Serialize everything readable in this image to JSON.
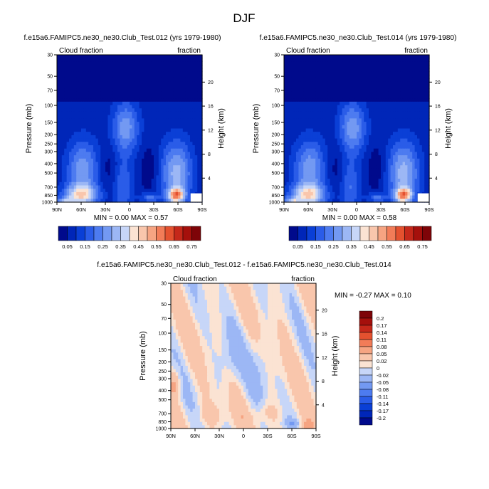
{
  "figure_title": "DJF",
  "chart_data": [
    {
      "type": "heatmap",
      "title": "f.e15a6.FAMIPC5.ne30_ne30.Club_Test.012 (yrs 1979-1980)",
      "variable": "Cloud fraction",
      "units": "fraction",
      "xlabel": "",
      "ylabel": "Pressure (mb)",
      "ylabel_right": "Height (km)",
      "x_ticks": [
        "90N",
        "60N",
        "30N",
        "0",
        "30S",
        "60S",
        "90S"
      ],
      "y_ticks": [
        "30",
        "50",
        "70",
        "100",
        "150",
        "200",
        "250",
        "300",
        "400",
        "500",
        "700",
        "850",
        "1000"
      ],
      "y_ticks_right": [
        "20",
        "16",
        "12",
        "8",
        "4"
      ],
      "xlim": [
        90,
        -90
      ],
      "ylim": [
        1000,
        30
      ],
      "stats": {
        "min_label": "MIN =",
        "min": "0.00",
        "max_label": "MAX =",
        "max": "0.57"
      },
      "colorbar": {
        "levels": [
          "0.05",
          "0.1",
          "0.15",
          "0.2",
          "0.25",
          "0.3",
          "0.35",
          "0.4",
          "0.45",
          "0.5",
          "0.55",
          "0.6",
          "0.65",
          "0.7",
          "0.75"
        ],
        "labels": [
          "0.05",
          "0.15",
          "0.25",
          "0.35",
          "0.45",
          "0.55",
          "0.65",
          "0.75"
        ],
        "colors": [
          "#000a8c",
          "#0026b8",
          "#0a3fd6",
          "#2a5ce8",
          "#4d7bf0",
          "#7399f2",
          "#9cb7f5",
          "#c7d6f8",
          "#fbe3d3",
          "#f9c6ac",
          "#f6a482",
          "#f27c58",
          "#e4512f",
          "#c5281a",
          "#a5100c",
          "#7e0408"
        ]
      }
    },
    {
      "type": "heatmap",
      "title": "f.e15a6.FAMIPC5.ne30_ne30.Club_Test.014 (yrs 1979-1980)",
      "variable": "Cloud fraction",
      "units": "fraction",
      "xlabel": "",
      "ylabel": "Pressure (mb)",
      "ylabel_right": "Height (km)",
      "x_ticks": [
        "90N",
        "60N",
        "30N",
        "0",
        "30S",
        "60S",
        "90S"
      ],
      "y_ticks": [
        "30",
        "50",
        "70",
        "100",
        "150",
        "200",
        "250",
        "300",
        "400",
        "500",
        "700",
        "850",
        "1000"
      ],
      "y_ticks_right": [
        "20",
        "16",
        "12",
        "8",
        "4"
      ],
      "xlim": [
        90,
        -90
      ],
      "ylim": [
        1000,
        30
      ],
      "stats": {
        "min_label": "MIN =",
        "min": "0.00",
        "max_label": "MAX =",
        "max": "0.58"
      },
      "colorbar": {
        "levels": [
          "0.05",
          "0.1",
          "0.15",
          "0.2",
          "0.25",
          "0.3",
          "0.35",
          "0.4",
          "0.45",
          "0.5",
          "0.55",
          "0.6",
          "0.65",
          "0.7",
          "0.75"
        ],
        "labels": [
          "0.05",
          "0.15",
          "0.25",
          "0.35",
          "0.45",
          "0.55",
          "0.65",
          "0.75"
        ],
        "colors": [
          "#000a8c",
          "#0026b8",
          "#0a3fd6",
          "#2a5ce8",
          "#4d7bf0",
          "#7399f2",
          "#9cb7f5",
          "#c7d6f8",
          "#fbe3d3",
          "#f9c6ac",
          "#f6a482",
          "#f27c58",
          "#e4512f",
          "#c5281a",
          "#a5100c",
          "#7e0408"
        ]
      }
    },
    {
      "type": "heatmap",
      "title": "f.e15a6.FAMIPC5.ne30_ne30.Club_Test.012 - f.e15a6.FAMIPC5.ne30_ne30.Club_Test.014",
      "variable": "Cloud fraction",
      "units": "fraction",
      "xlabel": "",
      "ylabel": "Pressure (mb)",
      "ylabel_right": "Height (km)",
      "x_ticks": [
        "90N",
        "60N",
        "30N",
        "0",
        "30S",
        "60S",
        "90S"
      ],
      "y_ticks": [
        "30",
        "50",
        "70",
        "100",
        "150",
        "200",
        "250",
        "300",
        "400",
        "500",
        "700",
        "850",
        "1000"
      ],
      "y_ticks_right": [
        "20",
        "16",
        "12",
        "8",
        "4"
      ],
      "xlim": [
        90,
        -90
      ],
      "ylim": [
        1000,
        30
      ],
      "stats": {
        "min_label": "MIN =",
        "min": "-0.27",
        "max_label": "MAX =",
        "max": "0.10"
      },
      "colorbar": {
        "labels": [
          "0.2",
          "0.17",
          "0.14",
          "0.11",
          "0.08",
          "0.05",
          "0.02",
          "0",
          "-0.02",
          "-0.05",
          "-0.08",
          "-0.11",
          "-0.14",
          "-0.17",
          "-0.2"
        ],
        "colors": [
          "#7e0408",
          "#a5100c",
          "#c5281a",
          "#e4512f",
          "#f27c58",
          "#f6a482",
          "#f9c6ac",
          "#fbe3d3",
          "#c7d6f8",
          "#9cb7f5",
          "#7399f2",
          "#4d7bf0",
          "#2a5ce8",
          "#0a3fd6",
          "#0026b8",
          "#000a8c"
        ]
      }
    }
  ]
}
